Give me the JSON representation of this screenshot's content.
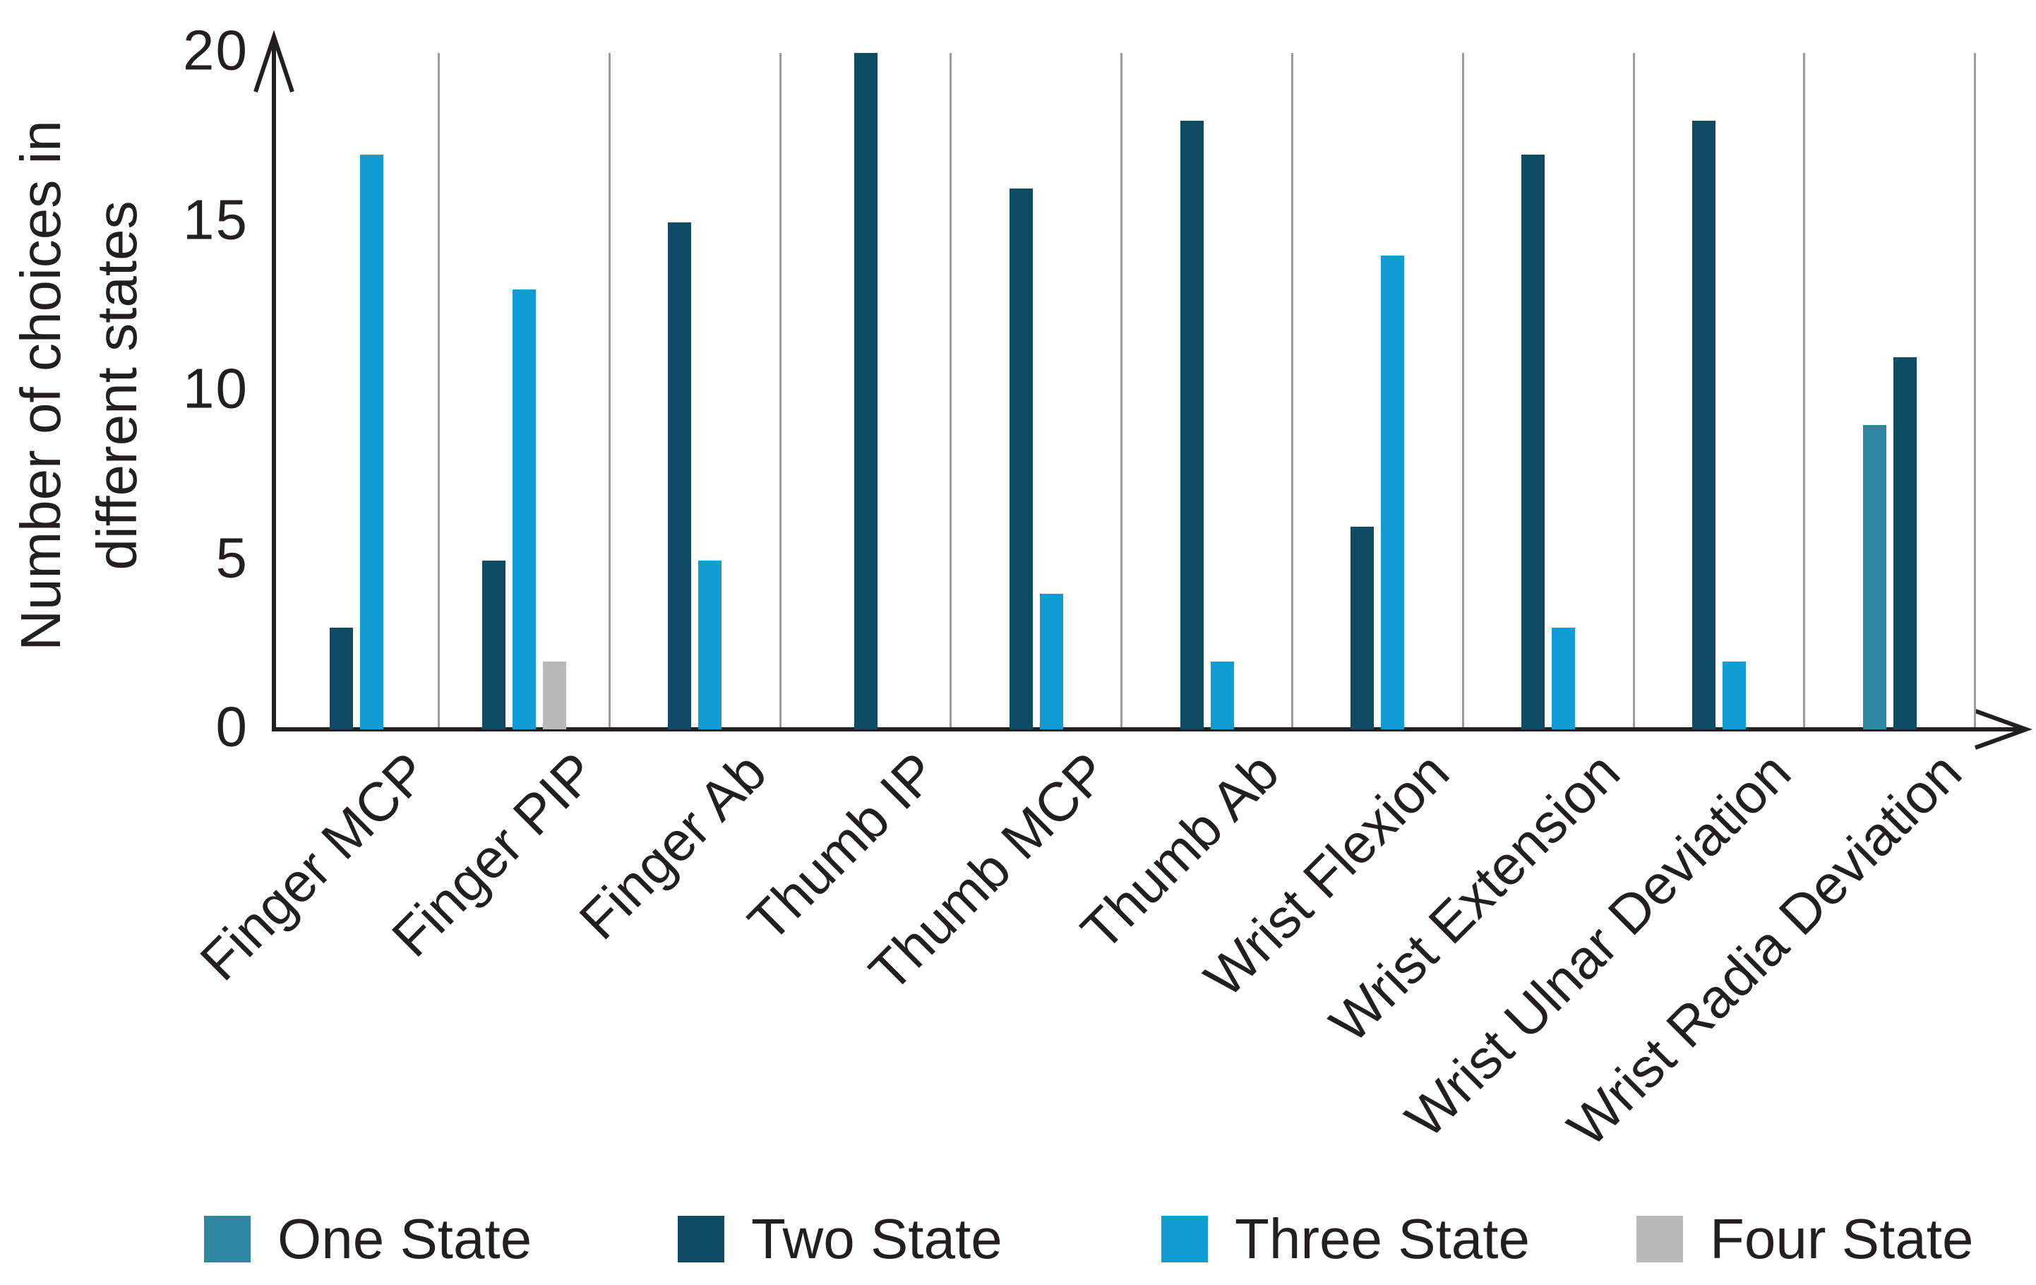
{
  "figure": {
    "background": "#ffffff",
    "text_color": "#231F20",
    "axis_color": "#231F20",
    "gridline_color": "#9C9C9C"
  },
  "chart_data": {
    "type": "bar",
    "title": "",
    "ylabel_lines": [
      "Number of choices in",
      "different states"
    ],
    "xlabel": "",
    "ylim": [
      0,
      20
    ],
    "yticks": [
      0,
      5,
      10,
      15,
      20
    ],
    "grid": "vertical separators between category groups",
    "legend_position": "bottom",
    "categories": [
      "Finger MCP",
      "Finger PIP",
      "Finger Ab",
      "Thumb IP",
      "Thumb MCP",
      "Thumb Ab",
      "Wrist Flexion",
      "Wrist Extension",
      "Wrist Ulnar Deviation",
      "Wrist Radia Deviation"
    ],
    "series": [
      {
        "name": "One State",
        "color": "#2E87A1",
        "values": [
          0,
          0,
          0,
          0,
          0,
          0,
          0,
          0,
          0,
          9
        ]
      },
      {
        "name": "Two State",
        "color": "#0F4B64",
        "values": [
          3,
          5,
          15,
          20,
          16,
          18,
          6,
          17,
          18,
          11
        ]
      },
      {
        "name": "Three State",
        "color": "#119CD5",
        "values": [
          17,
          13,
          5,
          0,
          4,
          2,
          14,
          3,
          2,
          0
        ]
      },
      {
        "name": "Four State",
        "color": "#B9B9B9",
        "values": [
          0,
          2,
          0,
          0,
          0,
          0,
          0,
          0,
          0,
          0
        ]
      }
    ]
  }
}
